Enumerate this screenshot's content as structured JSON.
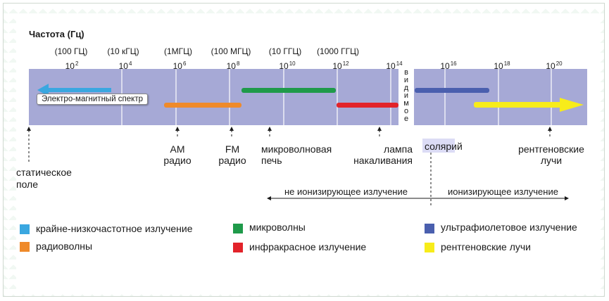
{
  "title": "Частота (Гц)",
  "freq_labels": [
    "(100 ГЦ)",
    "(10 кГЦ)",
    "(1МГЦ)",
    "(100 МГЦ)",
    "(10 ГГЦ)",
    "(1000 ГГЦ)"
  ],
  "powers": {
    "base": "10",
    "exponents": [
      "2",
      "4",
      "6",
      "8",
      "10",
      "12",
      "14",
      "16",
      "18",
      "20"
    ]
  },
  "visible_label": "видимое",
  "spectrum_label": "Электро-магнитный спектр",
  "sources": {
    "static": "статическое поле",
    "am": "AM радио",
    "fm": "FM радио",
    "microwave": "микроволновая печь",
    "lamp": "лампа накаливания",
    "solarium": "солярий",
    "xray": "рентгеновские лучи"
  },
  "ionizing": {
    "non": "не ионизирующее излучение",
    "yes": "ионизирующее излучение"
  },
  "legend": [
    {
      "label": "крайне-низкочастотное излучение",
      "color": "#3aa7e0"
    },
    {
      "label": "радиоволны",
      "color": "#ef8a2a"
    },
    {
      "label": "микроволны",
      "color": "#1f9a4a"
    },
    {
      "label": "инфракрасное излучение",
      "color": "#e2232a"
    },
    {
      "label": "ультрафиолетовое излучение",
      "color": "#4a5fae"
    },
    {
      "label": "рентгеновские лучи",
      "color": "#f7ec1a"
    }
  ],
  "colors": {
    "band": "#a6a9d6",
    "band_line": "#ffffff",
    "solarium_bg": "#dcdcf5"
  }
}
